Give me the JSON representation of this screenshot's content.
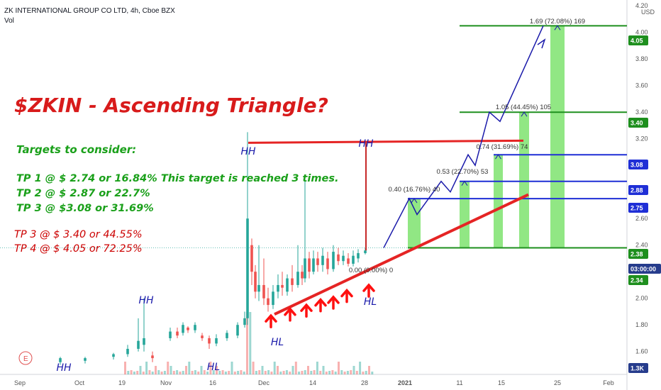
{
  "header": {
    "title": "ZK INTERNATIONAL GROUP CO LTD, 4h, Cboe BZX",
    "volume_label": "Vol"
  },
  "currency": "USD",
  "annotations": {
    "title": "$ZKIN - Ascending Triangle?",
    "targets_heading": "Targets to consider:",
    "tp1": "TP 1 @ $ 2.74 or 16.84% This target is reached 3 times.",
    "tp2": "TP 2 @ $ 2.87 or 22.7%",
    "tp3a": "TP 3 @ $3.08 or 31.69%",
    "tp3b": "TP 3 @ $ 3.40 or 44.55%",
    "tp4": "TP 4 @ $ 4.05 or 72.25%",
    "marker_labels": [
      "HH",
      "HH",
      "HH",
      "HL",
      "HL",
      "HL",
      "HH"
    ],
    "measure_labels": [
      "1.69 (72.08%) 169",
      "1.05 (44.45%) 105",
      "0.74 (31.69%) 74",
      "0.53 (22.70%) 53",
      "0.40 (16.76%) 40",
      "0.00 (0.00%) 0"
    ]
  },
  "price_axis": {
    "ticks": [
      "4.20",
      "4.00",
      "3.80",
      "3.60",
      "3.40",
      "3.20",
      "3.00",
      "2.80",
      "2.60",
      "2.40",
      "2.20",
      "2.00",
      "1.80",
      "1.60"
    ],
    "tags": [
      {
        "label": "4.05",
        "color": "#1e8f1e"
      },
      {
        "label": "3.40",
        "color": "#1e8f1e"
      },
      {
        "label": "3.08",
        "color": "#1f2fd6"
      },
      {
        "label": "2.88",
        "color": "#1f2fd6"
      },
      {
        "label": "2.75",
        "color": "#1f2fd6"
      },
      {
        "label": "2.38",
        "color": "#1e8f1e"
      },
      {
        "label": "03:00:00",
        "color": "#263c8c"
      },
      {
        "label": "2.34",
        "color": "#1e8f1e"
      },
      {
        "label": "1.3K",
        "color": "#263c8c"
      }
    ]
  },
  "time_axis": {
    "ticks": [
      "Sep",
      "Oct",
      "19",
      "Nov",
      "16",
      "Dec",
      "14",
      "28",
      "2021",
      "11",
      "15",
      "25",
      "Feb"
    ]
  },
  "chart_data": {
    "type": "candlestick",
    "title": "ZK INTERNATIONAL GROUP CO LTD, 4h, Cboe BZX",
    "ylim": [
      1.5,
      4.3
    ],
    "levels": [
      2.38,
      2.75,
      2.88,
      3.08,
      3.4,
      4.05
    ],
    "resistance": 3.17,
    "last_price": 2.34,
    "projection_path": [
      2.38,
      2.75,
      2.63,
      2.88,
      2.8,
      3.08,
      3.0,
      3.4,
      3.33,
      4.05
    ]
  }
}
